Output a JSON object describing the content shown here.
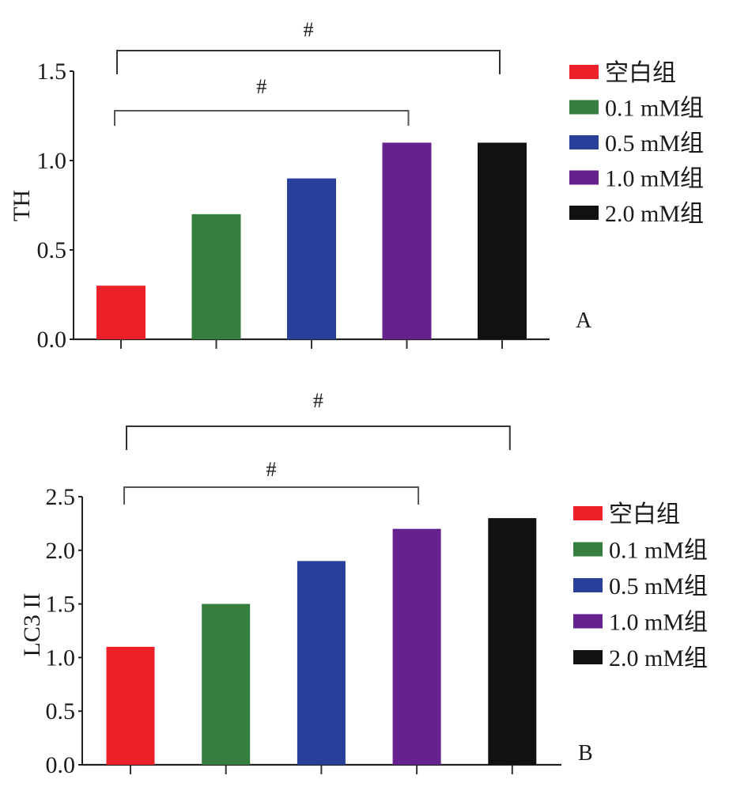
{
  "chart_data": [
    {
      "type": "bar",
      "panel_label": "A",
      "title": "",
      "xlabel": "",
      "ylabel": "TH",
      "ylim": [
        0,
        1.5
      ],
      "yticks": [
        "0.0",
        "0.5",
        "1.0",
        "1.5"
      ],
      "ytick_values": [
        0,
        0.5,
        1.0,
        1.5
      ],
      "grid": false,
      "legend_position": "right",
      "categories": [
        "空白组",
        "0.1 mM组",
        "0.5 mM组",
        "1.0 mM组",
        "2.0 mM组"
      ],
      "values": [
        0.3,
        0.7,
        0.9,
        1.1,
        1.1
      ],
      "colors": [
        "#ec2028",
        "#357e3e",
        "#283f9c",
        "#65228f",
        "#111111"
      ],
      "annotations": [
        {
          "label": "#",
          "from": 0,
          "to": 4,
          "level": "outer"
        },
        {
          "label": "#",
          "from": 0,
          "to": 3,
          "level": "inner"
        }
      ]
    },
    {
      "type": "bar",
      "panel_label": "B",
      "title": "",
      "xlabel": "",
      "ylabel": "LC3 II",
      "ylim": [
        0,
        2.5
      ],
      "yticks": [
        "0.0",
        "0.5",
        "1.0",
        "1.5",
        "2.0",
        "2.5"
      ],
      "ytick_values": [
        0,
        0.5,
        1.0,
        1.5,
        2.0,
        2.5
      ],
      "grid": false,
      "legend_position": "right",
      "categories": [
        "空白组",
        "0.1 mM组",
        "0.5 mM组",
        "1.0 mM组",
        "2.0 mM组"
      ],
      "values": [
        1.1,
        1.5,
        1.9,
        2.2,
        2.3
      ],
      "colors": [
        "#ec2028",
        "#357e3e",
        "#283f9c",
        "#65228f",
        "#111111"
      ],
      "annotations": [
        {
          "label": "#",
          "from": 0,
          "to": 4,
          "level": "outer"
        },
        {
          "label": "#",
          "from": 0,
          "to": 3,
          "level": "inner"
        }
      ]
    }
  ]
}
